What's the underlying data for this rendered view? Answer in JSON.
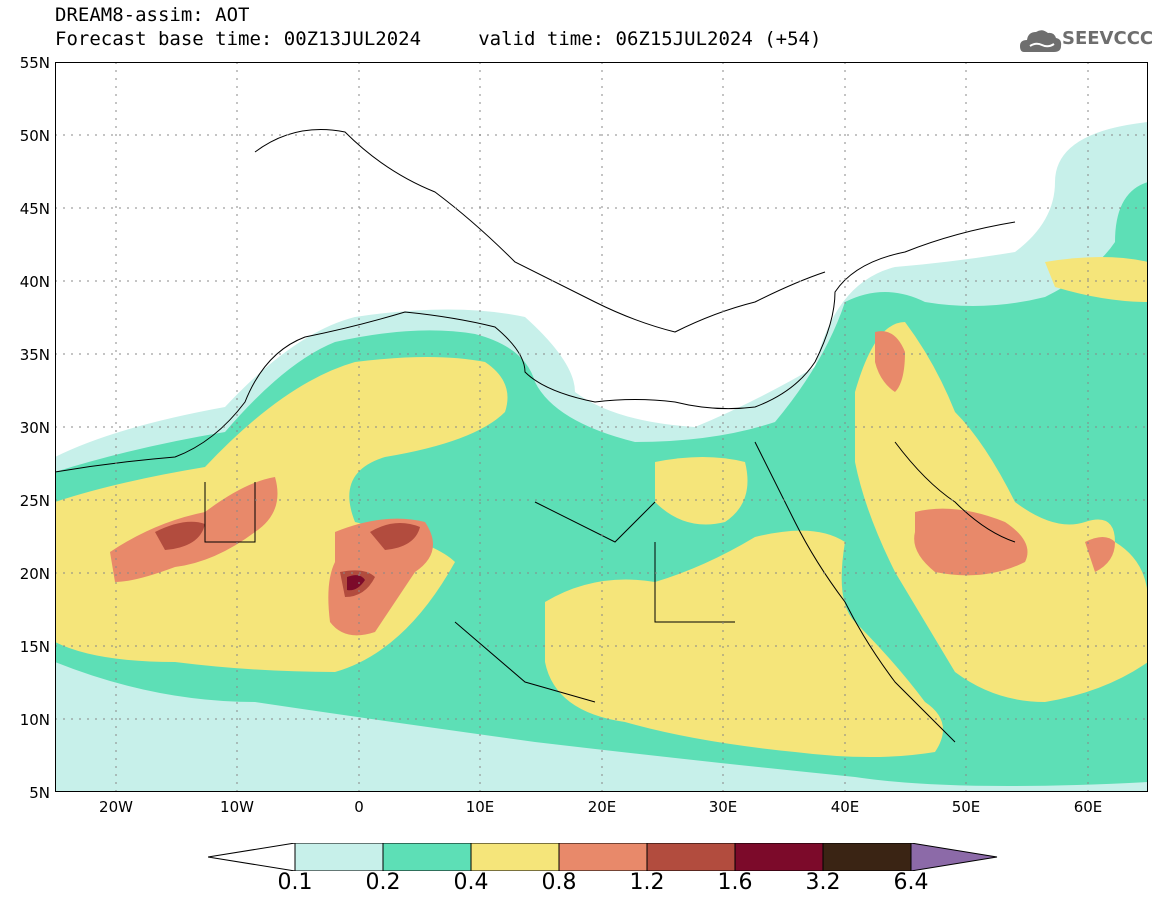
{
  "header": {
    "line1": "DREAM8-assim: AOT",
    "line2": "Forecast base time: 00Z13JUL2024     valid time: 06Z15JUL2024 (+54)"
  },
  "logo": {
    "text": "SEEVCCC",
    "icon": "cloud-icon"
  },
  "map": {
    "lat_labels": [
      "55N",
      "50N",
      "45N",
      "40N",
      "35N",
      "30N",
      "25N",
      "20N",
      "15N",
      "10N",
      "5N"
    ],
    "lon_labels": [
      "20W",
      "10W",
      "0",
      "10E",
      "20E",
      "30E",
      "40E",
      "50E",
      "60E"
    ],
    "lat_range": [
      5,
      55
    ],
    "lon_range": [
      -25,
      65
    ]
  },
  "colorbar": {
    "labels": [
      "0.1",
      "0.2",
      "0.4",
      "0.8",
      "1.2",
      "1.6",
      "3.2",
      "6.4"
    ],
    "colors": [
      "#ffffff",
      "#c7f0ea",
      "#5ddfb6",
      "#f5e57a",
      "#e8896a",
      "#b24c3e",
      "#7c0a2a",
      "#3a2414",
      "#8c6aa8"
    ]
  }
}
